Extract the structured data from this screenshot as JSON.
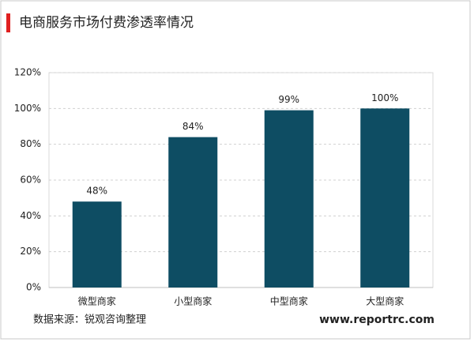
{
  "chart_data": {
    "type": "bar",
    "title": "电商服务市场付费渗透率情况",
    "categories": [
      "微型商家",
      "小型商家",
      "中型商家",
      "大型商家"
    ],
    "values": [
      48,
      84,
      99,
      100
    ],
    "value_labels": [
      "48%",
      "84%",
      "99%",
      "100%"
    ],
    "color": "#0e4d63",
    "ylim": [
      0,
      120
    ],
    "yticks": [
      {
        "value": 0,
        "label": "0%"
      },
      {
        "value": 20,
        "label": "20%"
      },
      {
        "value": 40,
        "label": "40%"
      },
      {
        "value": 60,
        "label": "60%"
      },
      {
        "value": 80,
        "label": "80%"
      },
      {
        "value": 100,
        "label": "100%"
      },
      {
        "value": 120,
        "label": "120%"
      }
    ],
    "grid": true,
    "source": "数据来源：锐观咨询整理",
    "website": "www.reportrc.com"
  }
}
